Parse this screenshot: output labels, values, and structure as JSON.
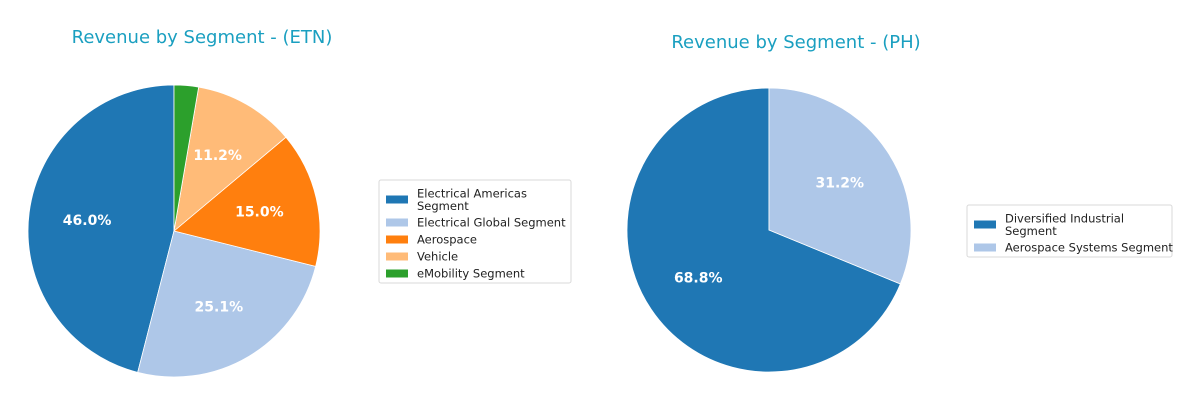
{
  "chart_data": [
    {
      "type": "pie",
      "title": "Revenue by Segment - (ETN)",
      "title_color": "#1a9fc0",
      "legend_placement": "right",
      "slices": [
        {
          "name": "Electrical Americas Segment",
          "legend_lines": [
            "Electrical Americas",
            "Segment"
          ],
          "value": 46.0,
          "label": "46.0%",
          "color": "#1f77b4"
        },
        {
          "name": "Electrical Global Segment",
          "legend_lines": [
            "Electrical Global Segment"
          ],
          "value": 25.1,
          "label": "25.1%",
          "color": "#aec7e8"
        },
        {
          "name": "Aerospace",
          "legend_lines": [
            "Aerospace"
          ],
          "value": 15.0,
          "label": "15.0%",
          "color": "#ff7f0e"
        },
        {
          "name": "Vehicle",
          "legend_lines": [
            "Vehicle"
          ],
          "value": 11.2,
          "label": "11.2%",
          "color": "#ffbb78"
        },
        {
          "name": "eMobility Segment",
          "legend_lines": [
            "eMobility Segment"
          ],
          "value": 2.7,
          "label": "",
          "color": "#2ca02c"
        }
      ]
    },
    {
      "type": "pie",
      "title": "Revenue by Segment - (PH)",
      "title_color": "#1a9fc0",
      "legend_placement": "right",
      "slices": [
        {
          "name": "Diversified Industrial Segment",
          "legend_lines": [
            "Diversified Industrial",
            "Segment"
          ],
          "value": 68.8,
          "label": "68.8%",
          "color": "#1f77b4"
        },
        {
          "name": "Aerospace Systems Segment",
          "legend_lines": [
            "Aerospace Systems Segment"
          ],
          "value": 31.2,
          "label": "31.2%",
          "color": "#aec7e8"
        }
      ]
    }
  ]
}
